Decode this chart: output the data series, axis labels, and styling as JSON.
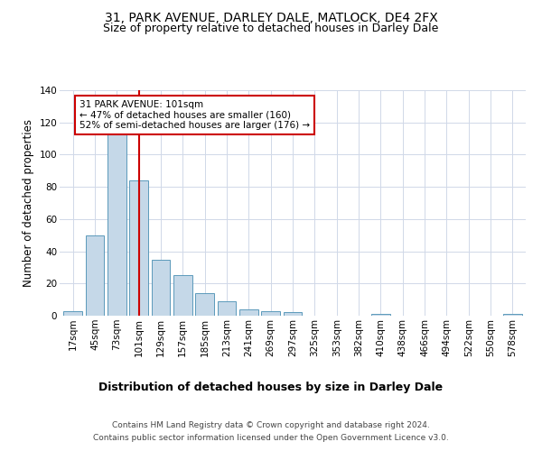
{
  "title": "31, PARK AVENUE, DARLEY DALE, MATLOCK, DE4 2FX",
  "subtitle": "Size of property relative to detached houses in Darley Dale",
  "xlabel": "Distribution of detached houses by size in Darley Dale",
  "ylabel": "Number of detached properties",
  "bar_labels": [
    "17sqm",
    "45sqm",
    "73sqm",
    "101sqm",
    "129sqm",
    "157sqm",
    "185sqm",
    "213sqm",
    "241sqm",
    "269sqm",
    "297sqm",
    "325sqm",
    "353sqm",
    "382sqm",
    "410sqm",
    "438sqm",
    "466sqm",
    "494sqm",
    "522sqm",
    "550sqm",
    "578sqm"
  ],
  "bar_values": [
    3,
    50,
    113,
    84,
    35,
    25,
    14,
    9,
    4,
    3,
    2,
    0,
    0,
    0,
    1,
    0,
    0,
    0,
    0,
    0,
    1
  ],
  "bar_color": "#c5d8e8",
  "bar_edge_color": "#5b9abb",
  "highlight_x_label": "101sqm",
  "highlight_line_color": "#cc0000",
  "annotation_text": "31 PARK AVENUE: 101sqm\n← 47% of detached houses are smaller (160)\n52% of semi-detached houses are larger (176) →",
  "annotation_box_color": "#ffffff",
  "annotation_box_edge_color": "#cc0000",
  "ylim": [
    0,
    140
  ],
  "yticks": [
    0,
    20,
    40,
    60,
    80,
    100,
    120,
    140
  ],
  "footer_line1": "Contains HM Land Registry data © Crown copyright and database right 2024.",
  "footer_line2": "Contains public sector information licensed under the Open Government Licence v3.0.",
  "bg_color": "#ffffff",
  "grid_color": "#d0d8e8",
  "title_fontsize": 10,
  "subtitle_fontsize": 9,
  "xlabel_fontsize": 9,
  "ylabel_fontsize": 8.5,
  "tick_fontsize": 7.5,
  "annotation_fontsize": 7.5,
  "footer_fontsize": 6.5
}
